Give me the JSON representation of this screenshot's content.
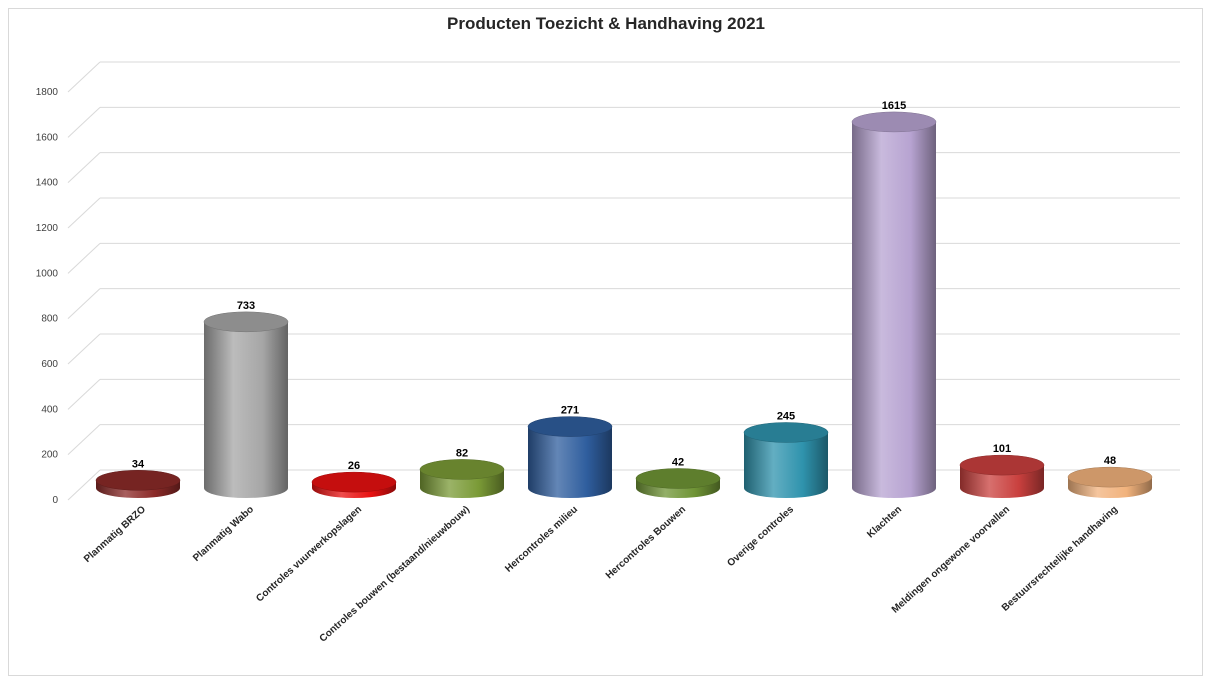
{
  "chart_data": {
    "type": "bar",
    "title": "Producten Toezicht & Handhaving 2021",
    "xlabel": "",
    "ylabel": "",
    "ylim": [
      0,
      1800
    ],
    "yticks": [
      0,
      200,
      400,
      600,
      800,
      1000,
      1200,
      1400,
      1600,
      1800
    ],
    "grid": true,
    "categories": [
      "Planmatig BRZO",
      "Planmatig Wabo",
      "Controles vuurwerkopslagen",
      "Controles bouwen  (bestaand/nieuwbouw)",
      "Hercontroles milieu",
      "Hercontroles Bouwen",
      "Overige controles",
      "Klachten",
      "Meldingen ongewone voorvallen",
      "Bestuursrechtelijke handhaving"
    ],
    "values": [
      34,
      733,
      26,
      82,
      271,
      42,
      245,
      1615,
      101,
      48
    ],
    "colors": [
      "#8b2a28",
      "#a6a6a6",
      "#e81010",
      "#7a9a36",
      "#2f5e9e",
      "#6f9435",
      "#2f93ad",
      "#b7a3d1",
      "#c9403e",
      "#f1b27c"
    ]
  }
}
